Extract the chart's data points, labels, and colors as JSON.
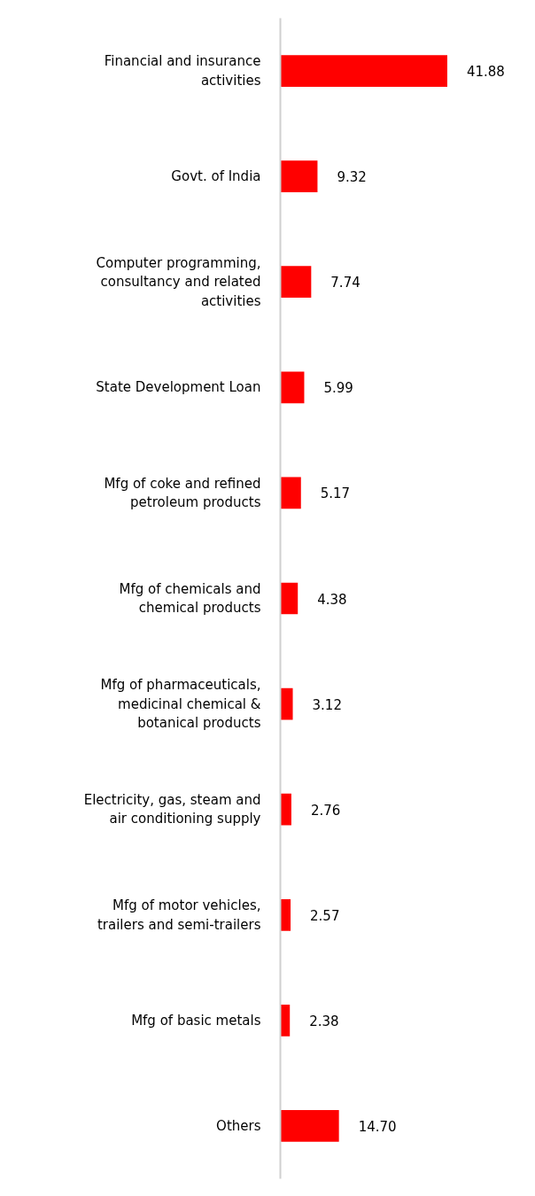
{
  "chart_data": {
    "type": "bar",
    "orientation": "horizontal",
    "categories": [
      "Financial and insurance activities",
      "Govt. of India",
      "Computer programming, consultancy and related activities",
      "State Development Loan",
      "Mfg of coke and refined petroleum products",
      "Mfg of chemicals and chemical products",
      "Mfg of pharmaceuticals, medicinal chemical & botanical products",
      "Electricity, gas, steam and air conditioning supply",
      "Mfg of motor vehicles, trailers and semi-trailers",
      "Mfg of basic metals",
      "Others"
    ],
    "values": [
      41.88,
      9.32,
      7.74,
      5.99,
      5.17,
      4.38,
      3.12,
      2.76,
      2.57,
      2.38,
      14.7
    ],
    "value_labels": [
      "41.88",
      "9.32",
      "7.74",
      "5.99",
      "5.17",
      "4.38",
      "3.12",
      "2.76",
      "2.57",
      "2.38",
      "14.70"
    ],
    "color": "#ff0000",
    "tick_labels": "y",
    "grid": false
  }
}
